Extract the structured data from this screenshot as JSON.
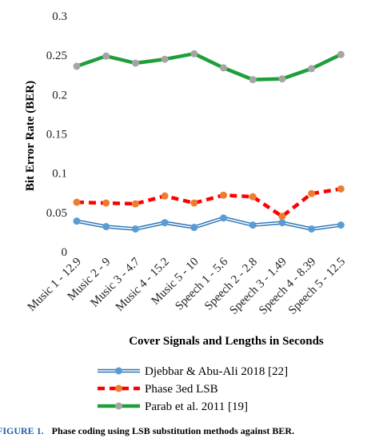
{
  "chart_data": {
    "type": "line",
    "title": "",
    "xlabel": "Cover Signals and Lengths in Seconds",
    "ylabel": "Bit Error Rate (BER)",
    "ylim": [
      0,
      0.3
    ],
    "yticks": [
      "0",
      "0.05",
      "0.1",
      "0.15",
      "0.2",
      "0.25",
      "0.3"
    ],
    "grid": false,
    "legend_position": "bottom",
    "categories": [
      "Music 1 - 12.9",
      "Music 2 - 9",
      "Music 3 - 4.7",
      "Music 4 - 15.2",
      "Music 5 - 10",
      "Speech 1 - 5.6",
      "Speech 2 - 2.8",
      "Speech 3 - 1.49",
      "Speech 4 - 8.39",
      "Speech 5 - 12.5"
    ],
    "series": [
      {
        "name": "Djebbar & Abu-Ali 2018 [22]",
        "color": "#2e75b6",
        "marker_color": "#5b9bd5",
        "style": "double-line",
        "values": [
          0.039,
          0.032,
          0.029,
          0.037,
          0.031,
          0.043,
          0.034,
          0.037,
          0.029,
          0.034
        ]
      },
      {
        "name": "Phase 3ed LSB",
        "color": "#ff0000",
        "marker_color": "#ed7d31",
        "style": "dashed",
        "values": [
          0.063,
          0.062,
          0.061,
          0.071,
          0.062,
          0.072,
          0.07,
          0.045,
          0.074,
          0.08
        ]
      },
      {
        "name": "Parab et al. 2011 [19]",
        "color": "#1f9e3a",
        "marker_color": "#a5a5a5",
        "style": "solid",
        "values": [
          0.236,
          0.249,
          0.24,
          0.245,
          0.252,
          0.234,
          0.219,
          0.22,
          0.233,
          0.251
        ]
      }
    ]
  },
  "caption": {
    "label": "FIGURE 1.",
    "text": "Phase coding using LSB substitution methods against BER."
  }
}
